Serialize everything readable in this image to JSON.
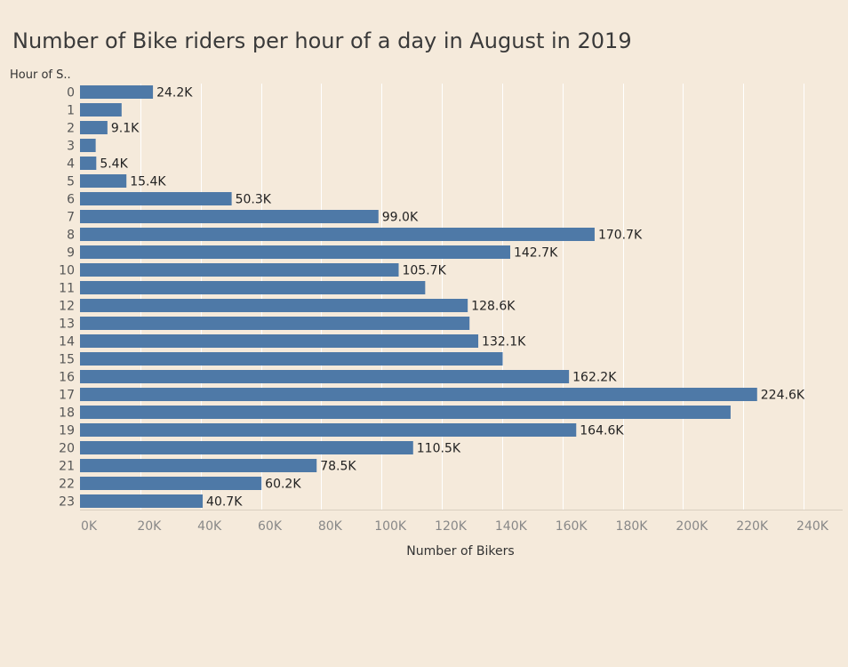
{
  "chart_data": {
    "type": "bar",
    "orientation": "horizontal",
    "title": "Number of Bike riders per hour of a day in August in 2019",
    "ylabel": "Hour of S..",
    "xlabel": "Number of Bikers",
    "categories": [
      "0",
      "1",
      "2",
      "3",
      "4",
      "5",
      "6",
      "7",
      "8",
      "9",
      "10",
      "11",
      "12",
      "13",
      "14",
      "15",
      "16",
      "17",
      "18",
      "19",
      "20",
      "21",
      "22",
      "23"
    ],
    "values": [
      24.2,
      13.8,
      9.1,
      5.2,
      5.4,
      15.4,
      50.3,
      99.0,
      170.7,
      142.7,
      105.7,
      114.5,
      128.6,
      129.2,
      132.1,
      140.2,
      162.2,
      224.6,
      215.8,
      164.6,
      110.5,
      78.5,
      60.2,
      40.7
    ],
    "data_labels": [
      "24.2K",
      "",
      "9.1K",
      "",
      "5.4K",
      "15.4K",
      "50.3K",
      "99.0K",
      "170.7K",
      "142.7K",
      "105.7K",
      "",
      "128.6K",
      "",
      "132.1K",
      "",
      "162.2K",
      "224.6K",
      "",
      "164.6K",
      "110.5K",
      "78.5K",
      "60.2K",
      "40.7K"
    ],
    "value_unit": "thousands",
    "xlim": [
      0,
      252
    ],
    "xticks": [
      0,
      20,
      40,
      60,
      80,
      100,
      120,
      140,
      160,
      180,
      200,
      220,
      240
    ],
    "xtick_labels": [
      "0K",
      "20K",
      "40K",
      "60K",
      "80K",
      "100K",
      "120K",
      "140K",
      "160K",
      "180K",
      "200K",
      "220K",
      "240K"
    ],
    "grid": true,
    "colors": {
      "bar": "#4e79a7",
      "background": "#f5eadb",
      "grid": "#ffffff",
      "axis": "#d9cfc0"
    }
  }
}
